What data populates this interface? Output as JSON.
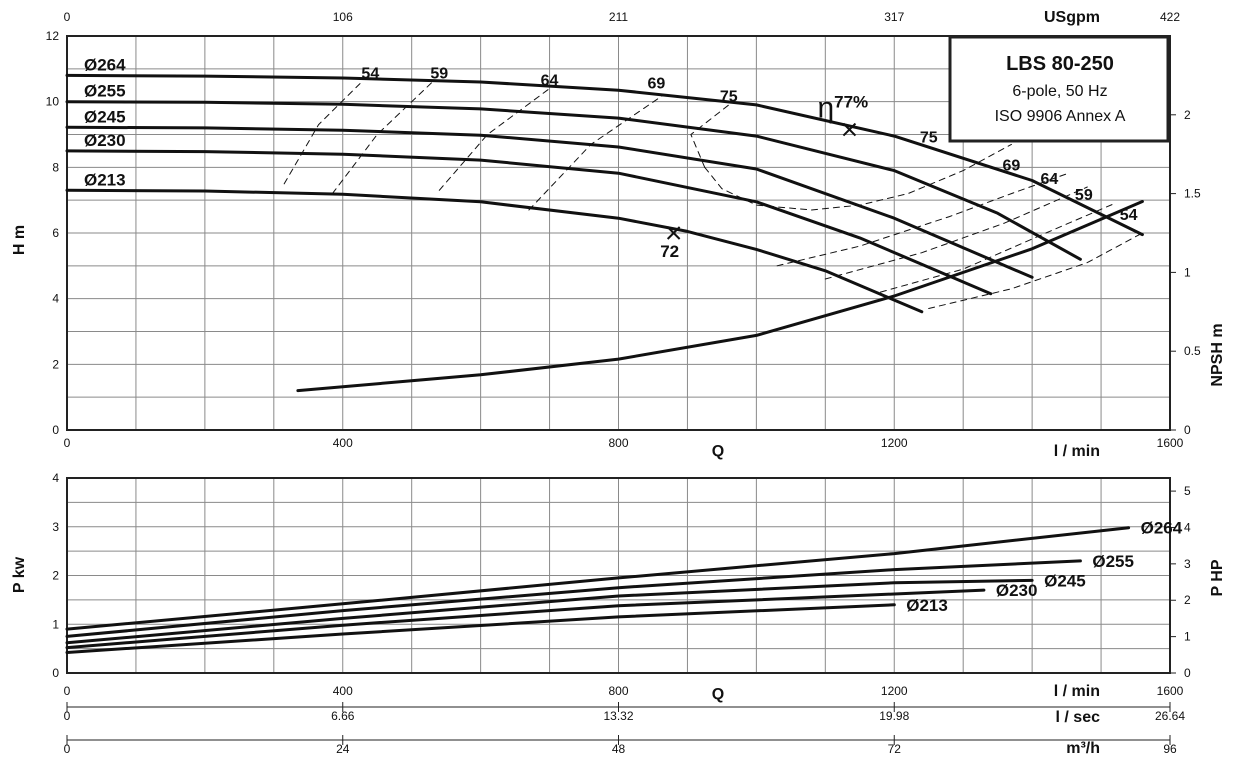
{
  "chart_data": [
    {
      "type": "line",
      "panel": "head",
      "x_units": "l / min",
      "xlim": [
        0,
        1600
      ],
      "ylim": [
        0,
        12
      ],
      "ylabel": "H m",
      "xlabel": "Q",
      "xlabel_right": "l / min",
      "top_axis": {
        "label": "USgpm",
        "ticks": [
          "0",
          "106",
          "211",
          "317",
          "422"
        ]
      },
      "x_ticks": [
        0,
        400,
        800,
        1200,
        1600
      ],
      "y_ticks": [
        0,
        2,
        4,
        6,
        8,
        10,
        12
      ],
      "npsh_axis": {
        "label": "NPSH m",
        "ticks": [
          "0",
          "0.5",
          "1",
          "1.5",
          "2"
        ],
        "ylim": [
          0,
          2.5
        ]
      },
      "title_box": {
        "title": "LBS 80-250",
        "line2": "6-pole, 50 Hz",
        "line3": "ISO 9906 Annex A"
      },
      "series": [
        {
          "name": "Ø264",
          "x": [
            0,
            200,
            400,
            600,
            800,
            1000,
            1200,
            1400,
            1560
          ],
          "y": [
            10.8,
            10.78,
            10.72,
            10.6,
            10.35,
            9.9,
            8.95,
            7.6,
            5.95
          ]
        },
        {
          "name": "Ø255",
          "x": [
            0,
            200,
            400,
            600,
            800,
            1000,
            1200,
            1350,
            1470
          ],
          "y": [
            10.0,
            9.98,
            9.92,
            9.78,
            9.5,
            8.95,
            7.9,
            6.6,
            5.2
          ]
        },
        {
          "name": "Ø245",
          "x": [
            0,
            200,
            400,
            600,
            800,
            1000,
            1200,
            1400
          ],
          "y": [
            9.22,
            9.2,
            9.13,
            8.98,
            8.62,
            7.95,
            6.45,
            4.65
          ]
        },
        {
          "name": "Ø230",
          "x": [
            0,
            200,
            400,
            600,
            800,
            1000,
            1150,
            1340
          ],
          "y": [
            8.5,
            8.48,
            8.4,
            8.22,
            7.82,
            6.95,
            5.85,
            4.15
          ]
        },
        {
          "name": "Ø213",
          "x": [
            0,
            200,
            400,
            600,
            800,
            900,
            1000,
            1100,
            1240
          ],
          "y": [
            7.3,
            7.28,
            7.18,
            6.95,
            6.45,
            6.05,
            5.5,
            4.85,
            3.6
          ]
        }
      ],
      "efficiency_lines": [
        {
          "label": "54",
          "x": [
            315,
            365,
            425
          ],
          "y": [
            7.5,
            9.3,
            10.55
          ]
        },
        {
          "label": "59",
          "x": [
            385,
            450,
            530
          ],
          "y": [
            7.2,
            9.0,
            10.6
          ]
        },
        {
          "label": "64",
          "x": [
            540,
            610,
            700
          ],
          "y": [
            7.3,
            9.0,
            10.4
          ]
        },
        {
          "label": "69",
          "x": [
            670,
            760,
            865
          ],
          "y": [
            6.7,
            8.7,
            10.2
          ]
        },
        {
          "label": "75",
          "x": [
            925,
            905,
            960
          ],
          "y": [
            8.0,
            9.0,
            9.9
          ]
        },
        {
          "label": "75",
          "x": [
            925,
            950,
            1000,
            1080,
            1150,
            1220,
            1300,
            1370
          ],
          "y": [
            8.0,
            7.35,
            6.85,
            6.7,
            6.85,
            7.2,
            7.9,
            8.7
          ]
        },
        {
          "label": "69",
          "x": [
            1030,
            1150,
            1280,
            1370,
            1450
          ],
          "y": [
            5.0,
            5.6,
            6.5,
            7.2,
            7.8
          ]
        },
        {
          "label": "64",
          "x": [
            1100,
            1240,
            1360,
            1480
          ],
          "y": [
            4.6,
            5.4,
            6.3,
            7.4
          ]
        },
        {
          "label": "59",
          "x": [
            1180,
            1300,
            1420,
            1520
          ],
          "y": [
            4.2,
            4.9,
            6.0,
            6.9
          ]
        },
        {
          "label": "54",
          "x": [
            1250,
            1370,
            1480,
            1560
          ],
          "y": [
            3.7,
            4.3,
            5.1,
            6.0
          ]
        }
      ],
      "efficiency_labels": [
        {
          "text": "54",
          "x": 440,
          "y": 10.7
        },
        {
          "text": "59",
          "x": 540,
          "y": 10.7
        },
        {
          "text": "64",
          "x": 700,
          "y": 10.5
        },
        {
          "text": "69",
          "x": 855,
          "y": 10.4
        },
        {
          "text": "75",
          "x": 960,
          "y": 10.0
        },
        {
          "text": "75",
          "x": 1250,
          "y": 8.75
        },
        {
          "text": "69",
          "x": 1370,
          "y": 7.9
        },
        {
          "text": "64",
          "x": 1425,
          "y": 7.5
        },
        {
          "text": "59",
          "x": 1475,
          "y": 7.0
        },
        {
          "text": "54",
          "x": 1540,
          "y": 6.4
        }
      ],
      "markers": [
        {
          "x": 1135,
          "y": 9.15,
          "label": "η77%"
        },
        {
          "x": 880,
          "y": 6.0,
          "label": "72"
        }
      ],
      "npsh_curve": {
        "x": [
          335,
          600,
          800,
          1000,
          1200,
          1400,
          1560
        ],
        "npsh": [
          0.25,
          0.35,
          0.45,
          0.6,
          0.85,
          1.15,
          1.45
        ]
      }
    },
    {
      "type": "line",
      "panel": "power",
      "x_units": "l / min",
      "xlim": [
        0,
        1600
      ],
      "ylim": [
        0,
        4
      ],
      "ylabel": "P kw",
      "xlabel": "Q",
      "y_ticks": [
        0,
        1,
        2,
        3,
        4
      ],
      "hp_axis": {
        "label": "P HP",
        "ticks": [
          "0",
          "1",
          "2",
          "3",
          "4",
          "5"
        ],
        "ylim": [
          0,
          5.36
        ]
      },
      "bottom_axes": [
        {
          "label": "l / min",
          "ticks": [
            "0",
            "400",
            "800",
            "1200",
            "1600"
          ]
        },
        {
          "label": "l / sec",
          "ticks": [
            "0",
            "6.66",
            "13.32",
            "19.98",
            "26.64"
          ]
        },
        {
          "label": "m³/h",
          "ticks": [
            "0",
            "24",
            "48",
            "72",
            "96"
          ]
        }
      ],
      "series": [
        {
          "name": "Ø264",
          "x": [
            0,
            400,
            800,
            1200,
            1540
          ],
          "y": [
            0.9,
            1.42,
            1.95,
            2.45,
            2.98
          ]
        },
        {
          "name": "Ø255",
          "x": [
            0,
            400,
            800,
            1200,
            1470
          ],
          "y": [
            0.75,
            1.28,
            1.75,
            2.12,
            2.3
          ]
        },
        {
          "name": "Ø245",
          "x": [
            0,
            400,
            800,
            1200,
            1400
          ],
          "y": [
            0.62,
            1.12,
            1.58,
            1.85,
            1.9
          ]
        },
        {
          "name": "Ø230",
          "x": [
            0,
            400,
            800,
            1200,
            1330
          ],
          "y": [
            0.52,
            0.98,
            1.38,
            1.62,
            1.7
          ]
        },
        {
          "name": "Ø213",
          "x": [
            0,
            400,
            800,
            1200
          ],
          "y": [
            0.42,
            0.8,
            1.15,
            1.4
          ]
        }
      ]
    }
  ]
}
